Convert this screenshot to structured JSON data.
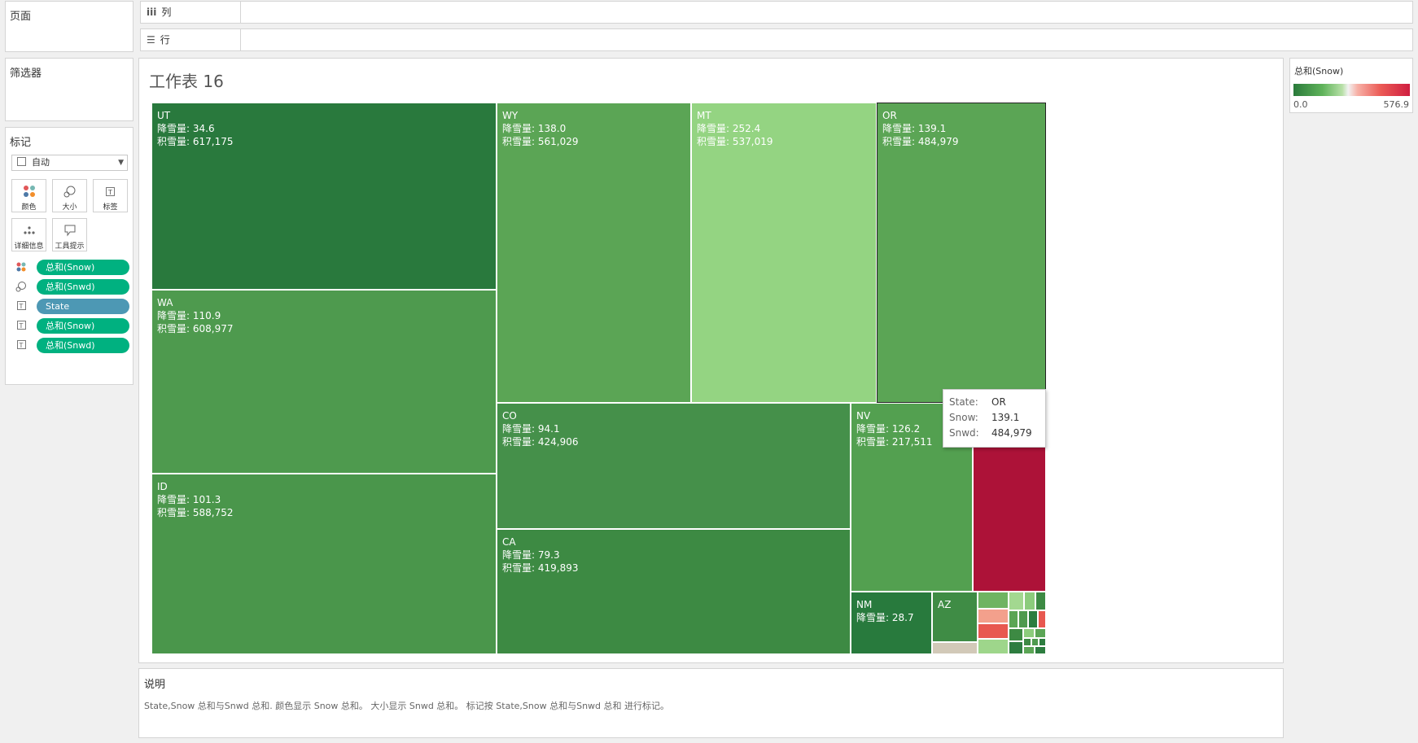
{
  "pages_panel": {
    "title": "页面"
  },
  "filters_panel": {
    "title": "筛选器"
  },
  "marks_panel": {
    "title": "标记",
    "mark_type": "自动",
    "buttons": [
      {
        "label": "颜色",
        "icon": "color-dots-icon"
      },
      {
        "label": "大小",
        "icon": "size-icon"
      },
      {
        "label": "标签",
        "icon": "label-icon"
      },
      {
        "label": "详细信息",
        "icon": "detail-icon"
      },
      {
        "label": "工具提示",
        "icon": "tooltip-icon"
      }
    ],
    "pills": [
      {
        "label": "总和(Snow)",
        "kind": "color",
        "color": "#00b180"
      },
      {
        "label": "总和(Snwd)",
        "kind": "size",
        "color": "#00b180"
      },
      {
        "label": "State",
        "kind": "label",
        "color": "#4d98b4"
      },
      {
        "label": "总和(Snow)",
        "kind": "label",
        "color": "#00b180"
      },
      {
        "label": "总和(Snwd)",
        "kind": "label",
        "color": "#00b180"
      }
    ]
  },
  "columns_shelf": {
    "label": "列"
  },
  "rows_shelf": {
    "label": "行"
  },
  "sheet": {
    "title": "工作表 16"
  },
  "legend": {
    "title": "总和(Snow)",
    "min": "0.0",
    "max": "576.9"
  },
  "chart_data": {
    "type": "treemap",
    "size_measure": "总和(Snwd)",
    "color_measure": "总和(Snow)",
    "label_measure_names": {
      "snow": "降雪量",
      "snwd": "积雪量"
    },
    "items": [
      {
        "state": "UT",
        "snow_label": "降雪量: 34.6",
        "snwd_label": "积雪量: 617,175",
        "color": "#29793d"
      },
      {
        "state": "WA",
        "snow_label": "降雪量: 110.9",
        "snwd_label": "积雪量: 608,977",
        "color": "#4e9a4e"
      },
      {
        "state": "ID",
        "snow_label": "降雪量: 101.3",
        "snwd_label": "积雪量: 588,752",
        "color": "#4a964b"
      },
      {
        "state": "WY",
        "snow_label": "降雪量: 138.0",
        "snwd_label": "积雪量: 561,029",
        "color": "#5ba555"
      },
      {
        "state": "MT",
        "snow_label": "降雪量: 252.4",
        "snwd_label": "积雪量: 537,019",
        "color": "#94d482"
      },
      {
        "state": "OR",
        "snow_label": "降雪量: 139.1",
        "snwd_label": "积雪量: 484,979",
        "color": "#5ba555"
      },
      {
        "state": "CO",
        "snow_label": "降雪量: 94.1",
        "snwd_label": "积雪量: 424,906",
        "color": "#45904a"
      },
      {
        "state": "CA",
        "snow_label": "降雪量: 79.3",
        "snwd_label": "积雪量: 419,893",
        "color": "#3d8a43"
      },
      {
        "state": "NV",
        "snow_label": "降雪量: 126.2",
        "snwd_label": "积雪量: 217,511",
        "color": "#53a050"
      },
      {
        "state": "NM",
        "snow_label": "降雪量: 28.7",
        "snwd_label": "",
        "color": "#287a3d"
      },
      {
        "state": "AZ",
        "snow_label": "",
        "snwd_label": "",
        "color": "#3f8c45"
      }
    ]
  },
  "tooltip": {
    "state_key": "State:",
    "state_val": "OR",
    "snow_key": "Snow:",
    "snow_val": "139.1",
    "snwd_key": "Snwd:",
    "snwd_val": "484,979"
  },
  "caption": {
    "title": "说明",
    "text": "State,Snow 总和与Snwd 总和. 颜色显示 Snow 总和。 大小显示 Snwd 总和。 标记按 State,Snow 总和与Snwd 总和 进行标记。"
  }
}
